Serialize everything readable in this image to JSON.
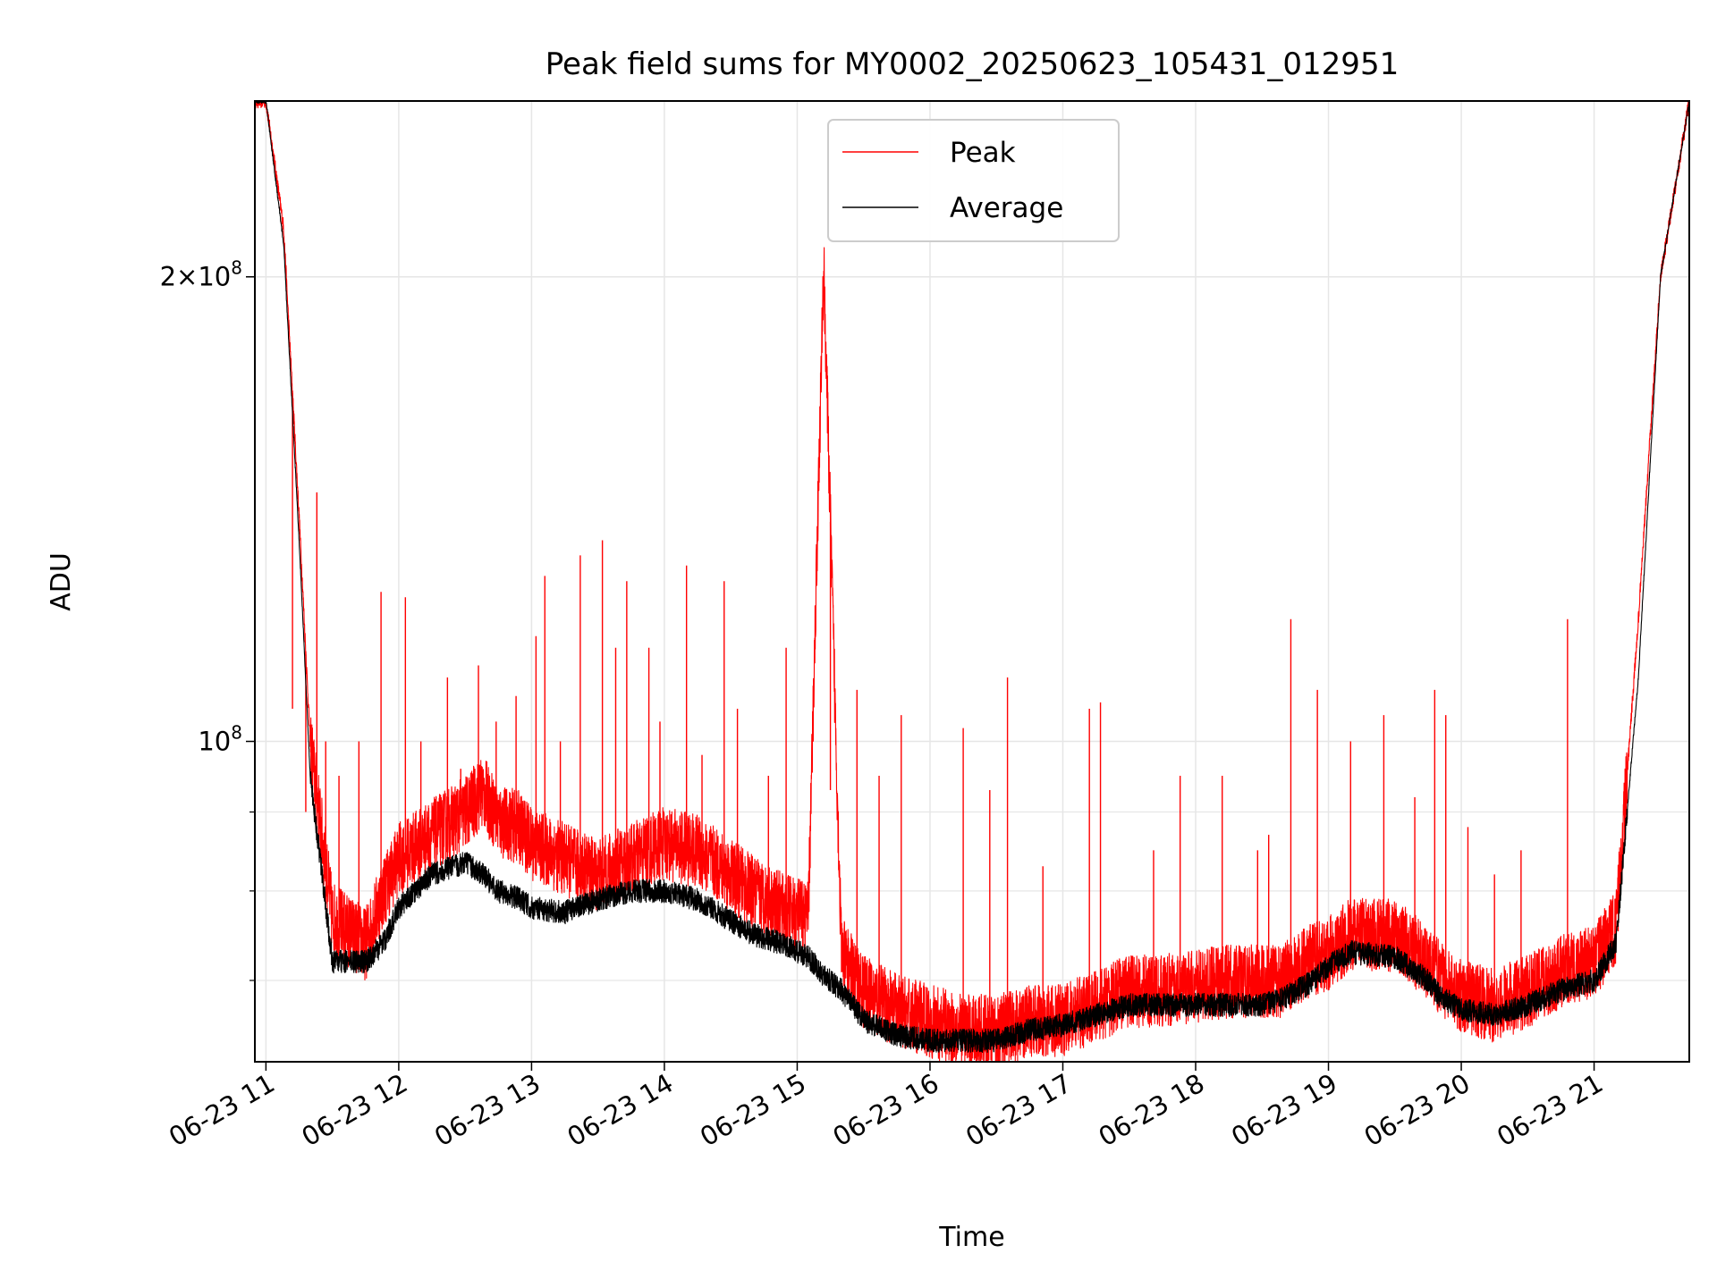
{
  "chart_data": {
    "type": "line",
    "title": "Peak field sums for MY0002_20250623_105431_012951",
    "xlabel": "Time",
    "ylabel": "ADU",
    "x_scale": "time",
    "y_scale": "log",
    "xlim": [
      "2025-06-23 10:55",
      "2025-06-23 21:43"
    ],
    "ylim": [
      62000000,
      260000000
    ],
    "grid": true,
    "legend_position": "top-center",
    "x_ticks": [
      "06-23 11",
      "06-23 12",
      "06-23 13",
      "06-23 14",
      "06-23 15",
      "06-23 16",
      "06-23 17",
      "06-23 18",
      "06-23 19",
      "06-23 20",
      "06-23 21"
    ],
    "y_ticks": [
      {
        "value": 200000000,
        "label": "2×10^8"
      },
      {
        "value": 100000000,
        "label": "10^8"
      }
    ],
    "series": [
      {
        "name": "Peak",
        "color": "#ff0000",
        "x": [
          "10:55",
          "11:00",
          "11:08",
          "11:15",
          "11:20",
          "11:30",
          "11:45",
          "11:53",
          "12:00",
          "12:15",
          "12:30",
          "12:38",
          "12:45",
          "12:55",
          "13:00",
          "13:15",
          "13:30",
          "13:45",
          "14:00",
          "14:15",
          "14:30",
          "14:40",
          "14:53",
          "15:05",
          "15:12",
          "15:20",
          "15:30",
          "15:45",
          "16:00",
          "16:15",
          "16:30",
          "16:45",
          "17:00",
          "17:15",
          "17:30",
          "17:45",
          "18:00",
          "18:15",
          "18:30",
          "18:38",
          "18:50",
          "19:00",
          "19:10",
          "19:30",
          "19:45",
          "19:50",
          "20:00",
          "20:15",
          "20:30",
          "20:45",
          "21:00",
          "21:10",
          "21:20",
          "21:30",
          "21:43"
        ],
        "y": [
          260000000,
          260000000,
          215000000,
          140000000,
          100000000,
          77000000,
          74000000,
          80000000,
          84000000,
          87000000,
          90000000,
          93000000,
          89000000,
          88000000,
          86000000,
          84000000,
          82000000,
          84000000,
          86000000,
          85000000,
          82000000,
          80000000,
          78000000,
          77000000,
          204000000,
          73000000,
          69000000,
          67000000,
          66000000,
          65000000,
          65000000,
          66000000,
          66000000,
          67500000,
          69000000,
          69000000,
          69500000,
          70000000,
          70000000,
          70000000,
          72000000,
          73000000,
          75000000,
          75000000,
          72000000,
          70500000,
          68500000,
          67500000,
          69000000,
          71000000,
          72000000,
          76000000,
          120000000,
          200000000,
          260000000
        ]
      },
      {
        "name": "Average",
        "color": "#000000",
        "x": [
          "10:55",
          "11:00",
          "11:08",
          "11:15",
          "11:20",
          "11:30",
          "11:45",
          "11:53",
          "12:00",
          "12:15",
          "12:30",
          "12:38",
          "12:45",
          "12:55",
          "13:00",
          "13:15",
          "13:30",
          "13:45",
          "14:00",
          "14:15",
          "14:30",
          "14:40",
          "14:53",
          "15:05",
          "15:12",
          "15:20",
          "15:30",
          "15:45",
          "16:00",
          "16:15",
          "16:30",
          "16:45",
          "17:00",
          "17:15",
          "17:30",
          "17:45",
          "18:00",
          "18:15",
          "18:30",
          "18:38",
          "18:50",
          "19:00",
          "19:10",
          "19:30",
          "19:45",
          "19:50",
          "20:00",
          "20:15",
          "20:30",
          "20:45",
          "21:00",
          "21:10",
          "21:20",
          "21:30",
          "21:43"
        ],
        "y": [
          260000000,
          260000000,
          210000000,
          135000000,
          95000000,
          72000000,
          72000000,
          74000000,
          78000000,
          82000000,
          83500000,
          82000000,
          80000000,
          79000000,
          78000000,
          77500000,
          79000000,
          80000000,
          80000000,
          79000000,
          76500000,
          75000000,
          74000000,
          72500000,
          70500000,
          69000000,
          66000000,
          64500000,
          64000000,
          64000000,
          64000000,
          65000000,
          65500000,
          66500000,
          67500000,
          67500000,
          67500000,
          67500000,
          67500000,
          68000000,
          69500000,
          71500000,
          73000000,
          72500000,
          70000000,
          68500000,
          67000000,
          66500000,
          67500000,
          69000000,
          70000000,
          74000000,
          110000000,
          200000000,
          260000000
        ]
      }
    ],
    "peak_spikes": {
      "x": [
        "11:12",
        "11:18",
        "11:23",
        "11:27",
        "11:33",
        "11:42",
        "11:52",
        "12:03",
        "12:10",
        "12:22",
        "12:28",
        "12:36",
        "12:44",
        "12:53",
        "13:02",
        "13:06",
        "13:13",
        "13:22",
        "13:32",
        "13:38",
        "13:43",
        "13:53",
        "13:58",
        "14:10",
        "14:17",
        "14:27",
        "14:33",
        "14:47",
        "14:55",
        "15:15",
        "15:27",
        "15:37",
        "15:47",
        "16:15",
        "16:27",
        "16:35",
        "16:51",
        "17:12",
        "17:17",
        "17:41",
        "17:53",
        "18:12",
        "18:28",
        "18:33",
        "18:43",
        "18:55",
        "19:10",
        "19:25",
        "19:39",
        "19:48",
        "19:53",
        "20:03",
        "20:15",
        "20:27",
        "20:48"
      ],
      "y": [
        105000000,
        90000000,
        145000000,
        100000000,
        95000000,
        100000000,
        125000000,
        124000000,
        100000000,
        110000000,
        96000000,
        112000000,
        103000000,
        107000000,
        117000000,
        128000000,
        100000000,
        132000000,
        135000000,
        115000000,
        127000000,
        115000000,
        103000000,
        130000000,
        98000000,
        127000000,
        105000000,
        95000000,
        115000000,
        93000000,
        108000000,
        95000000,
        104000000,
        102000000,
        93000000,
        110000000,
        83000000,
        105000000,
        106000000,
        85000000,
        95000000,
        95000000,
        85000000,
        87000000,
        120000000,
        108000000,
        100000000,
        104000000,
        92000000,
        108000000,
        104000000,
        88000000,
        82000000,
        85000000,
        120000000
      ]
    }
  }
}
